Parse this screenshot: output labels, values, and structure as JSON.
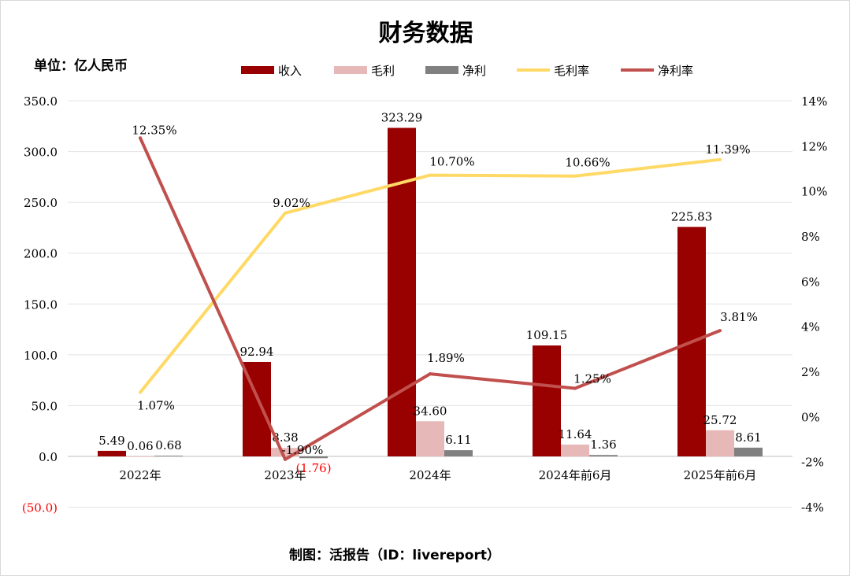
{
  "title": "财务数据",
  "unit_label": "单位：亿人民币",
  "footer": "制图：活报告（ID：livereport）",
  "legend": [
    {
      "name": "收入",
      "kind": "rect",
      "color": "#990000"
    },
    {
      "name": "毛利",
      "kind": "rect",
      "color": "#e6b8b7"
    },
    {
      "name": "净利",
      "kind": "rect",
      "color": "#808080"
    },
    {
      "name": "毛利率",
      "kind": "line",
      "color": "#ffd966"
    },
    {
      "name": "净利率",
      "kind": "line",
      "color": "#c0504d"
    }
  ],
  "chart_data": {
    "type": "bar",
    "categories": [
      "2022年",
      "2023年",
      "2024年",
      "2024年前6月",
      "2025年前6月"
    ],
    "series": [
      {
        "name": "收入",
        "type": "bar",
        "axis": "left",
        "color": "#990000",
        "values": [
          5.49,
          92.94,
          323.29,
          109.15,
          225.83
        ],
        "labels": [
          "5.49",
          "92.94",
          "323.29",
          "109.15",
          "225.83"
        ]
      },
      {
        "name": "毛利",
        "type": "bar",
        "axis": "left",
        "color": "#e6b8b7",
        "values": [
          0.06,
          8.38,
          34.6,
          11.64,
          25.72
        ],
        "labels": [
          "0.06",
          "8.38",
          "34.60",
          "11.64",
          "25.72"
        ]
      },
      {
        "name": "净利",
        "type": "bar",
        "axis": "left",
        "color": "#808080",
        "values": [
          0.68,
          -1.76,
          6.11,
          1.36,
          8.61
        ],
        "labels": [
          "0.68",
          "(1.76)",
          "6.11",
          "1.36",
          "8.61"
        ]
      },
      {
        "name": "毛利率",
        "type": "line",
        "axis": "right",
        "color": "#ffd966",
        "values": [
          1.07,
          9.02,
          10.7,
          10.66,
          11.39
        ],
        "labels": [
          "1.07%",
          "9.02%",
          "10.70%",
          "10.66%",
          "11.39%"
        ]
      },
      {
        "name": "净利率",
        "type": "line",
        "axis": "right",
        "color": "#c0504d",
        "values": [
          12.35,
          -1.9,
          1.89,
          1.25,
          3.81
        ],
        "labels": [
          "12.35%",
          "-1.90%",
          "1.89%",
          "1.25%",
          "3.81%"
        ]
      }
    ],
    "left_axis": {
      "min": -50,
      "max": 350,
      "step": 50,
      "tick_labels": [
        "(50.0)",
        "0.0",
        "50.0",
        "100.0",
        "150.0",
        "200.0",
        "250.0",
        "300.0",
        "350.0"
      ],
      "negative_color": "#ff0000"
    },
    "right_axis": {
      "min": -4,
      "max": 14,
      "step": 2,
      "tick_labels": [
        "-4%",
        "-2%",
        "0%",
        "2%",
        "4%",
        "6%",
        "8%",
        "10%",
        "12%",
        "14%"
      ]
    },
    "grid": true
  }
}
